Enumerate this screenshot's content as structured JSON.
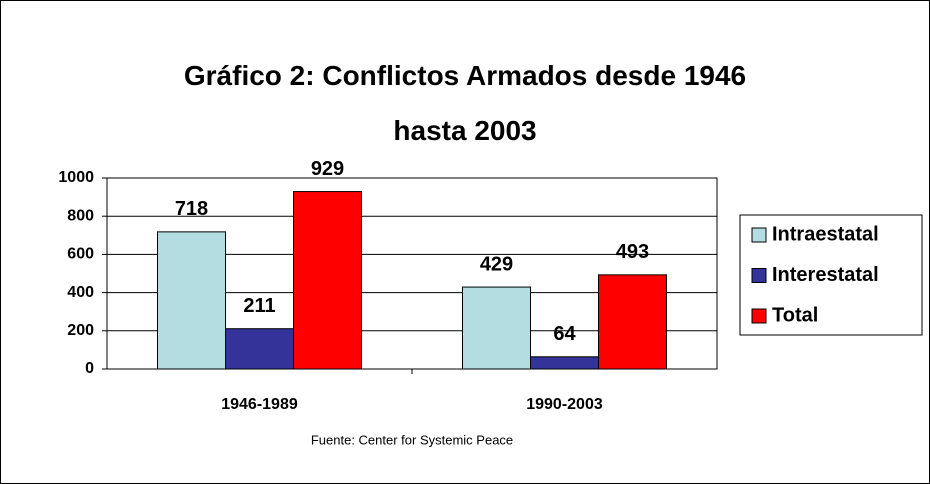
{
  "chart_data": {
    "type": "bar",
    "title": "Gráfico 2: Conflictos Armados desde 1946 hasta 2003",
    "source": "Fuente: Center for Systemic Peace",
    "categories": [
      "1946-1989",
      "1990-2003"
    ],
    "series": [
      {
        "name": "Intraestatal",
        "color": "#b3dde0",
        "values": [
          718,
          429
        ]
      },
      {
        "name": "Interestatal",
        "color": "#333399",
        "values": [
          211,
          64
        ]
      },
      {
        "name": "Total",
        "color": "#ff0000",
        "values": [
          929,
          493
        ]
      }
    ],
    "ylim": [
      0,
      1000
    ],
    "yticks": [
      0,
      200,
      400,
      600,
      800,
      1000
    ],
    "grid": true,
    "legend": "right"
  }
}
